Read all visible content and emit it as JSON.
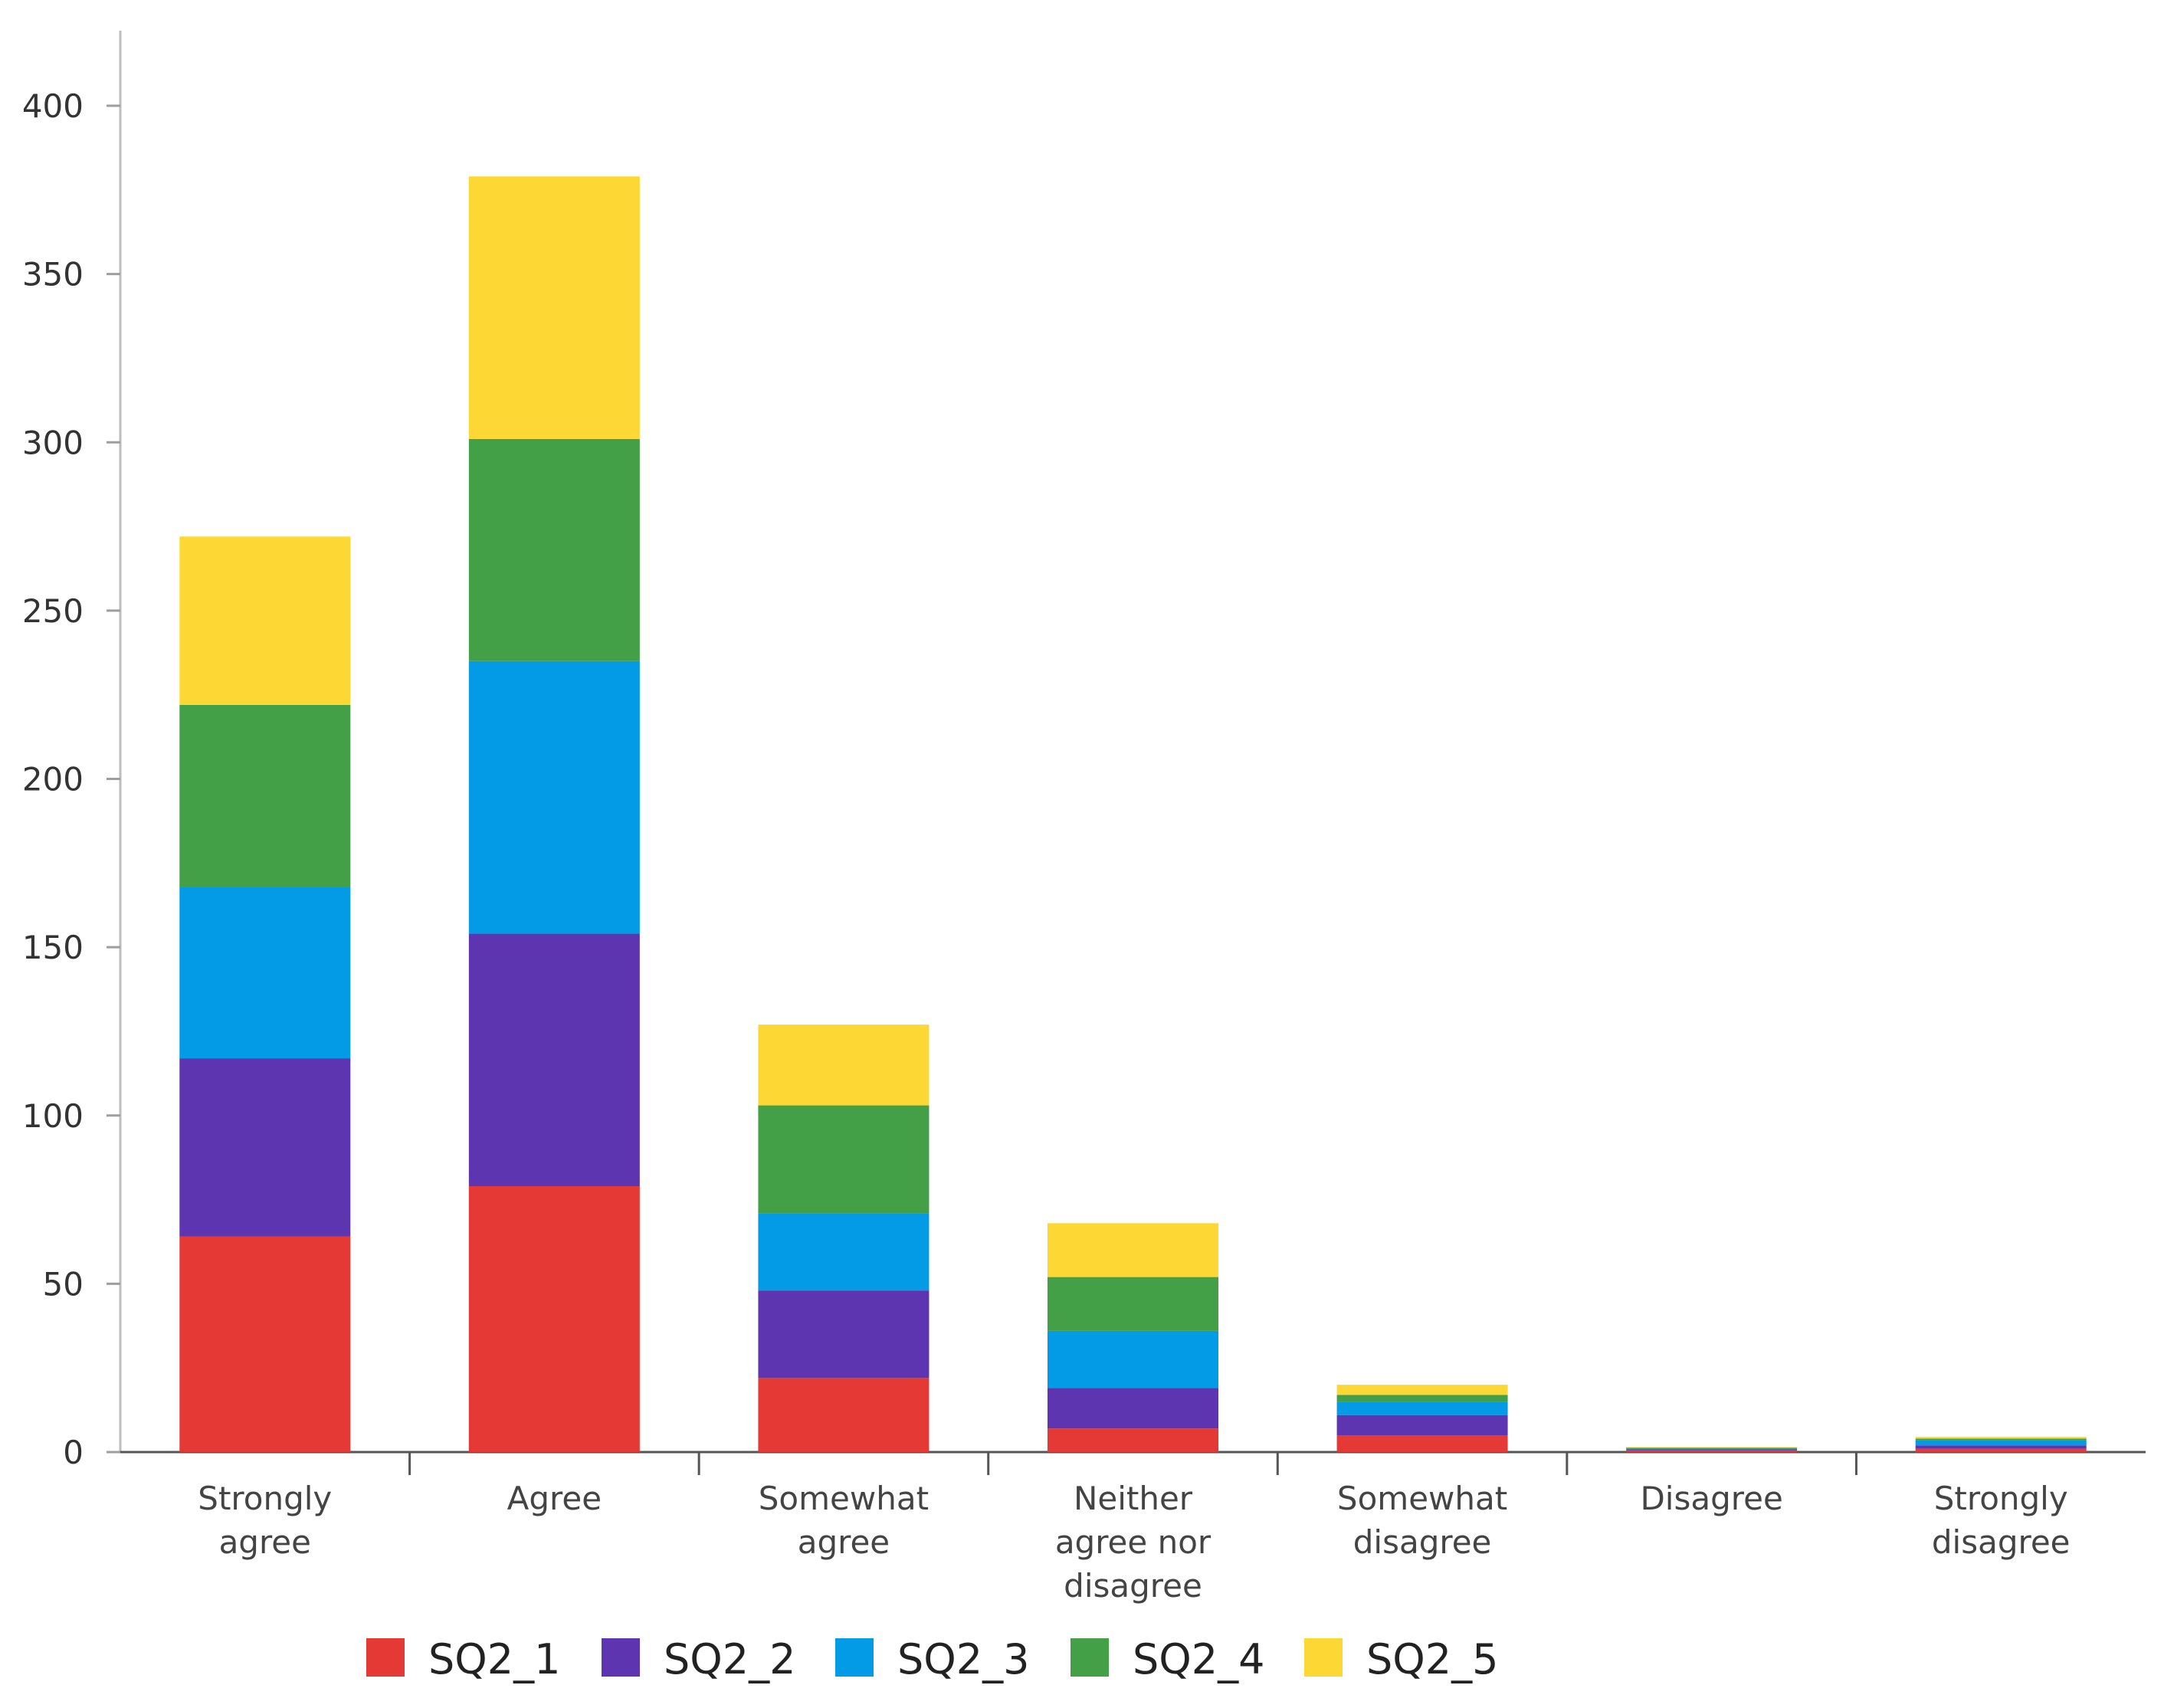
{
  "chart_data": {
    "type": "bar",
    "stacked": true,
    "title": "",
    "xlabel": "",
    "ylabel": "",
    "ylim": [
      0,
      400
    ],
    "yticks": [
      0,
      50,
      100,
      150,
      200,
      250,
      300,
      350,
      400
    ],
    "grid": false,
    "legend_position": "bottom",
    "categories": [
      [
        "Strongly",
        "agree"
      ],
      [
        "Agree"
      ],
      [
        "Somewhat",
        "agree"
      ],
      [
        "Neither",
        "agree nor",
        "disagree"
      ],
      [
        "Somewhat",
        "disagree"
      ],
      [
        "Disagree"
      ],
      [
        "Strongly",
        "disagree"
      ]
    ],
    "series": [
      {
        "name": "SQ2_1",
        "color": "#e53935",
        "values": [
          64,
          79,
          22,
          7,
          5,
          0.5,
          1
        ]
      },
      {
        "name": "SQ2_2",
        "color": "#5e35b1",
        "values": [
          53,
          75,
          26,
          12,
          6,
          0.3,
          1
        ]
      },
      {
        "name": "SQ2_3",
        "color": "#039be5",
        "values": [
          51,
          81,
          23,
          17,
          4,
          0.2,
          1.5
        ]
      },
      {
        "name": "SQ2_4",
        "color": "#43a047",
        "values": [
          54,
          66,
          32,
          16,
          2,
          0.3,
          0.5
        ]
      },
      {
        "name": "SQ2_5",
        "color": "#fdd835",
        "values": [
          50,
          78,
          24,
          16,
          3,
          0.2,
          0.5
        ]
      }
    ]
  }
}
